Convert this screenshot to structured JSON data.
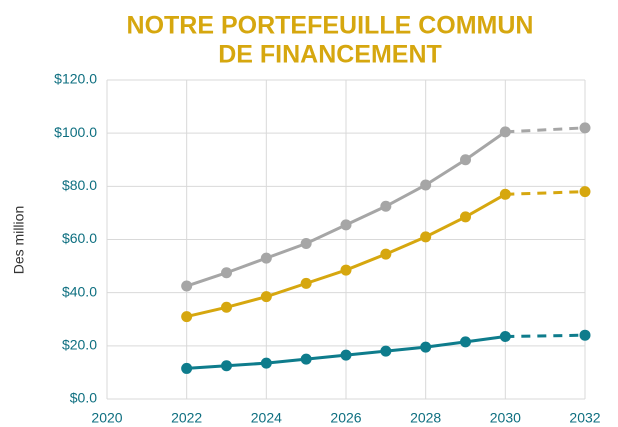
{
  "chart_data": {
    "type": "line",
    "title": [
      "NOTRE PORTEFEUILLE COMMUN",
      "DE FINANCEMENT"
    ],
    "y_label": "Des million",
    "x": [
      2022,
      2023,
      2024,
      2025,
      2026,
      2027,
      2028,
      2029,
      2030,
      2032
    ],
    "dashed_from": 2030,
    "series": [
      {
        "color": "#a6a6a6",
        "values": [
          42.5,
          47.5,
          53,
          58.5,
          65.5,
          72.5,
          80.5,
          90,
          100.5,
          102
        ]
      },
      {
        "color": "#d6a70f",
        "values": [
          31,
          34.5,
          38.5,
          43.5,
          48.5,
          54.5,
          61,
          68.5,
          77,
          78
        ]
      },
      {
        "color": "#0e7c8c",
        "values": [
          11.5,
          12.5,
          13.5,
          15,
          16.5,
          18,
          19.5,
          21.5,
          23.5,
          24
        ]
      }
    ],
    "xlim": [
      2020,
      2032
    ],
    "xticks": [
      2020,
      2022,
      2024,
      2026,
      2028,
      2030,
      2032
    ],
    "ylim": [
      0,
      120
    ],
    "yticks": [
      {
        "value": 0,
        "label": "$0.0"
      },
      {
        "value": 20,
        "label": "$20.0"
      },
      {
        "value": 40,
        "label": "$40.0"
      },
      {
        "value": 60,
        "label": "$60.0"
      },
      {
        "value": 80,
        "label": "$80.0"
      },
      {
        "value": 100,
        "label": "$100.0"
      },
      {
        "value": 120,
        "label": "$120.0"
      }
    ],
    "grid": true
  }
}
